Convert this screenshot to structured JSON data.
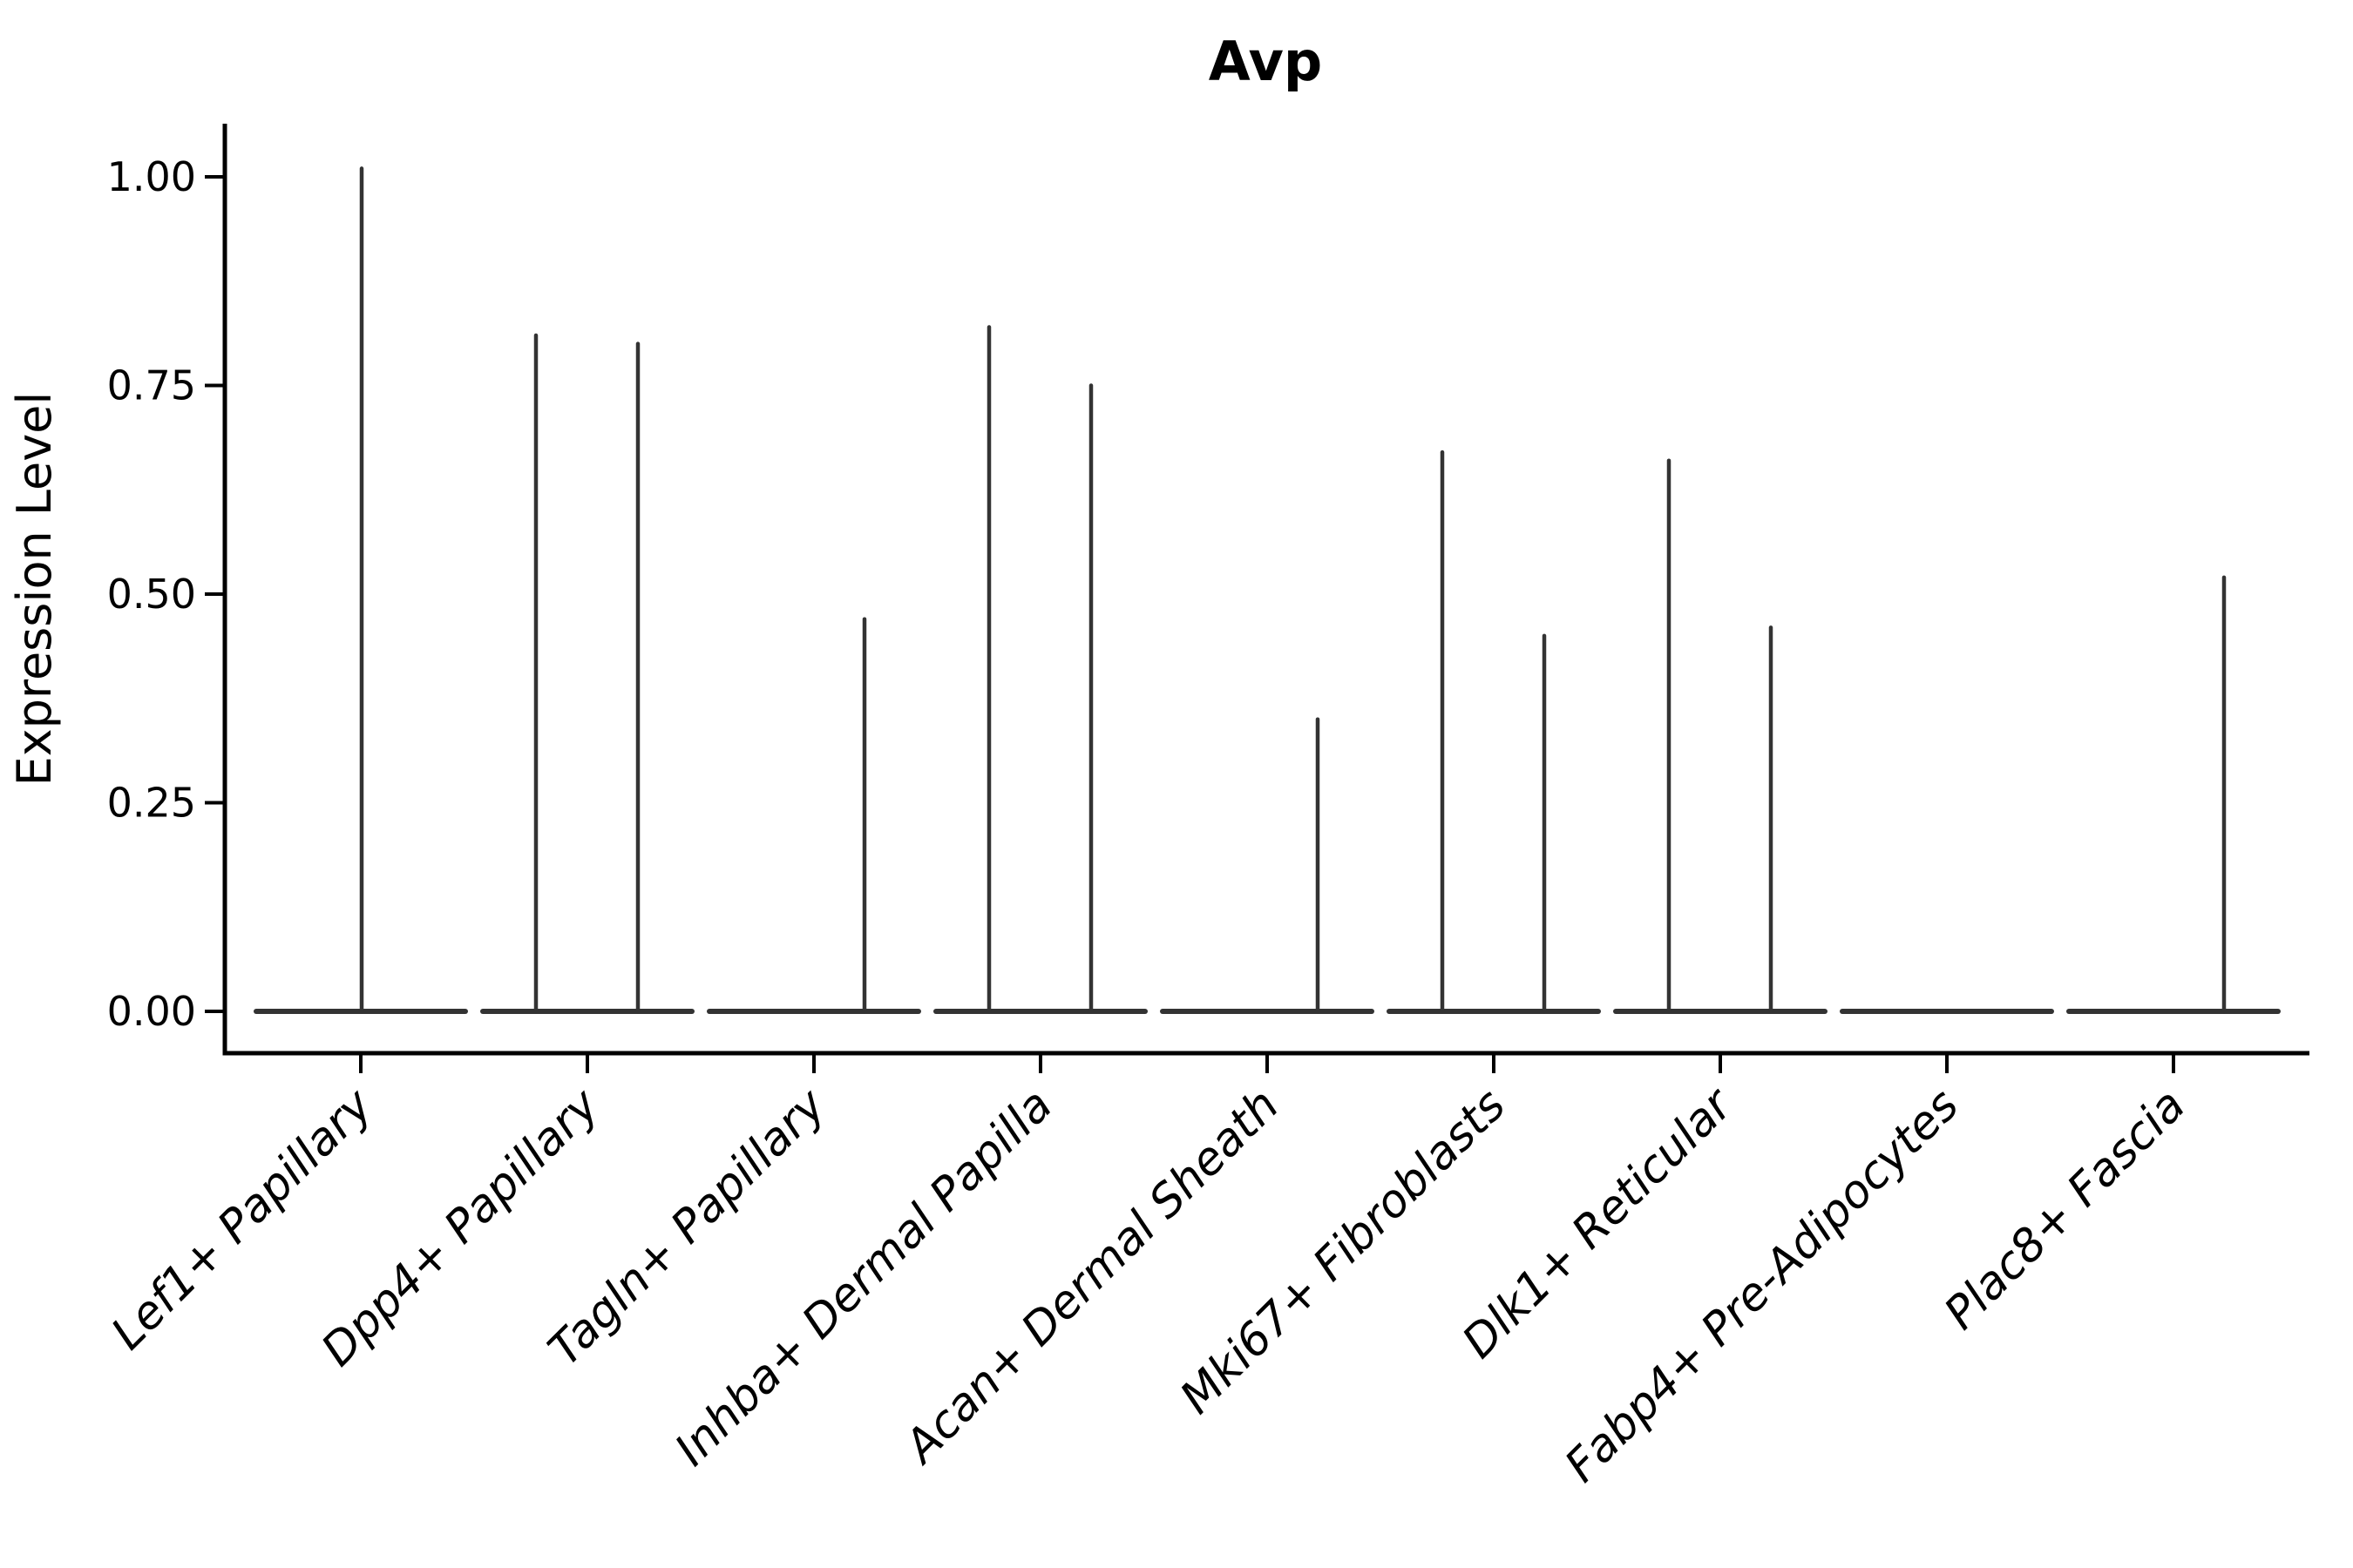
{
  "figure": {
    "title": "Avp",
    "background_color": "#ffffff"
  },
  "chart_data": {
    "type": "violin",
    "title": "Avp",
    "xlabel": "",
    "ylabel": "Expression Level",
    "ylim": [
      -0.05,
      1.06
    ],
    "ytick_labels": [
      "0.00",
      "0.25",
      "0.50",
      "0.75",
      "1.00"
    ],
    "ytick_values": [
      0,
      0.25,
      0.5,
      0.75,
      1.0
    ],
    "grid": false,
    "legend": "none",
    "violin_color": "#333333",
    "axis_color": "#000000",
    "categories": [
      "Lef1+ Papillary",
      "Dpp4+ Papillary",
      "Tagln+ Papillary",
      "Inhba+ Dermal Papilla",
      "Acan+ Dermal Sheath",
      "Mki67+ Fibroblasts",
      "Dlk1+ Reticular",
      "Fabp4+ Pre-Adipocytes",
      "Plac8+ Fascia"
    ],
    "violins": [
      {
        "category": "Lef1+ Papillary",
        "baseline_value": 0,
        "spikes": [
          {
            "position": "center",
            "value": 1.01
          }
        ]
      },
      {
        "category": "Dpp4+ Papillary",
        "baseline_value": 0,
        "spikes": [
          {
            "position": "left",
            "value": 0.81
          },
          {
            "position": "right",
            "value": 0.8
          }
        ]
      },
      {
        "category": "Tagln+ Papillary",
        "baseline_value": 0,
        "spikes": [
          {
            "position": "right",
            "value": 0.47
          }
        ]
      },
      {
        "category": "Inhba+ Dermal Papilla",
        "baseline_value": 0,
        "spikes": [
          {
            "position": "left",
            "value": 0.82
          },
          {
            "position": "right",
            "value": 0.75
          }
        ]
      },
      {
        "category": "Acan+ Dermal Sheath",
        "baseline_value": 0,
        "spikes": [
          {
            "position": "right",
            "value": 0.35
          }
        ]
      },
      {
        "category": "Mki67+ Fibroblasts",
        "baseline_value": 0,
        "spikes": [
          {
            "position": "left",
            "value": 0.67
          },
          {
            "position": "right",
            "value": 0.45
          }
        ]
      },
      {
        "category": "Dlk1+ Reticular",
        "baseline_value": 0,
        "spikes": [
          {
            "position": "left",
            "value": 0.66
          },
          {
            "position": "right",
            "value": 0.46
          }
        ]
      },
      {
        "category": "Fabp4+ Pre-Adipocytes",
        "baseline_value": 0,
        "spikes": []
      },
      {
        "category": "Plac8+ Fascia",
        "baseline_value": 0,
        "spikes": [
          {
            "position": "right",
            "value": 0.52
          }
        ]
      }
    ]
  }
}
